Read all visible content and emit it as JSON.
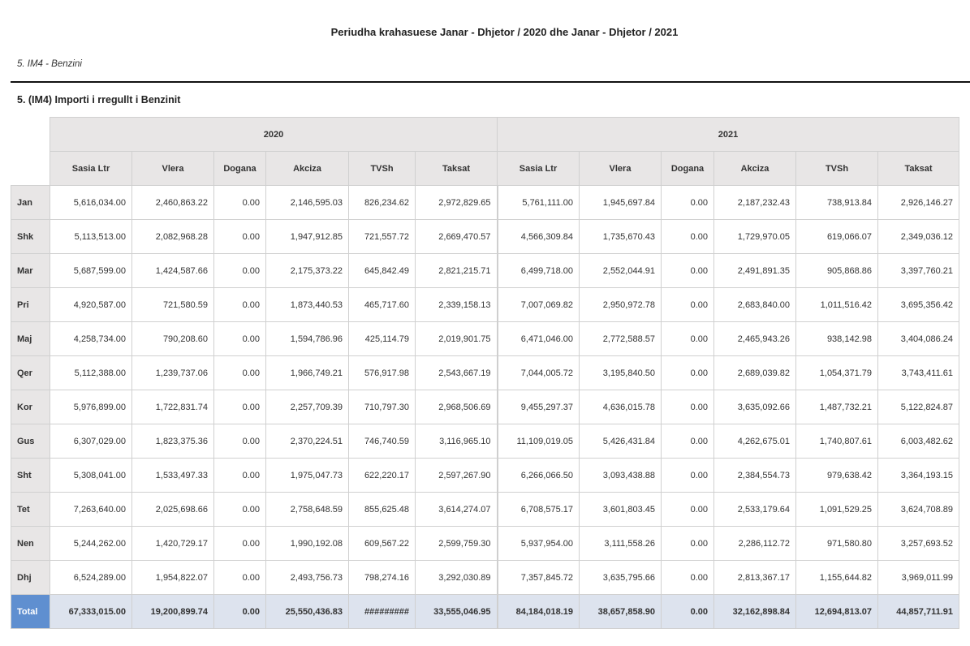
{
  "title": "Periudha krahasuese  Janar - Dhjetor / 2020 dhe Janar - Dhjetor / 2021",
  "subtitle": "5. IM4 - Benzini",
  "section_title": "5. (IM4) Importi i rregullt i Benzinit",
  "years": [
    "2020",
    "2021"
  ],
  "columns": [
    "Sasia Ltr",
    "Vlera",
    "Dogana",
    "Akciza",
    "TVSh",
    "Taksat"
  ],
  "rows": [
    {
      "month": "Jan",
      "y2020": [
        "5,616,034.00",
        "2,460,863.22",
        "0.00",
        "2,146,595.03",
        "826,234.62",
        "2,972,829.65"
      ],
      "y2021": [
        "5,761,111.00",
        "1,945,697.84",
        "0.00",
        "2,187,232.43",
        "738,913.84",
        "2,926,146.27"
      ]
    },
    {
      "month": "Shk",
      "y2020": [
        "5,113,513.00",
        "2,082,968.28",
        "0.00",
        "1,947,912.85",
        "721,557.72",
        "2,669,470.57"
      ],
      "y2021": [
        "4,566,309.84",
        "1,735,670.43",
        "0.00",
        "1,729,970.05",
        "619,066.07",
        "2,349,036.12"
      ]
    },
    {
      "month": "Mar",
      "y2020": [
        "5,687,599.00",
        "1,424,587.66",
        "0.00",
        "2,175,373.22",
        "645,842.49",
        "2,821,215.71"
      ],
      "y2021": [
        "6,499,718.00",
        "2,552,044.91",
        "0.00",
        "2,491,891.35",
        "905,868.86",
        "3,397,760.21"
      ]
    },
    {
      "month": "Pri",
      "y2020": [
        "4,920,587.00",
        "721,580.59",
        "0.00",
        "1,873,440.53",
        "465,717.60",
        "2,339,158.13"
      ],
      "y2021": [
        "7,007,069.82",
        "2,950,972.78",
        "0.00",
        "2,683,840.00",
        "1,011,516.42",
        "3,695,356.42"
      ]
    },
    {
      "month": "Maj",
      "y2020": [
        "4,258,734.00",
        "790,208.60",
        "0.00",
        "1,594,786.96",
        "425,114.79",
        "2,019,901.75"
      ],
      "y2021": [
        "6,471,046.00",
        "2,772,588.57",
        "0.00",
        "2,465,943.26",
        "938,142.98",
        "3,404,086.24"
      ]
    },
    {
      "month": "Qer",
      "y2020": [
        "5,112,388.00",
        "1,239,737.06",
        "0.00",
        "1,966,749.21",
        "576,917.98",
        "2,543,667.19"
      ],
      "y2021": [
        "7,044,005.72",
        "3,195,840.50",
        "0.00",
        "2,689,039.82",
        "1,054,371.79",
        "3,743,411.61"
      ]
    },
    {
      "month": "Kor",
      "y2020": [
        "5,976,899.00",
        "1,722,831.74",
        "0.00",
        "2,257,709.39",
        "710,797.30",
        "2,968,506.69"
      ],
      "y2021": [
        "9,455,297.37",
        "4,636,015.78",
        "0.00",
        "3,635,092.66",
        "1,487,732.21",
        "5,122,824.87"
      ]
    },
    {
      "month": "Gus",
      "y2020": [
        "6,307,029.00",
        "1,823,375.36",
        "0.00",
        "2,370,224.51",
        "746,740.59",
        "3,116,965.10"
      ],
      "y2021": [
        "11,109,019.05",
        "5,426,431.84",
        "0.00",
        "4,262,675.01",
        "1,740,807.61",
        "6,003,482.62"
      ]
    },
    {
      "month": "Sht",
      "y2020": [
        "5,308,041.00",
        "1,533,497.33",
        "0.00",
        "1,975,047.73",
        "622,220.17",
        "2,597,267.90"
      ],
      "y2021": [
        "6,266,066.50",
        "3,093,438.88",
        "0.00",
        "2,384,554.73",
        "979,638.42",
        "3,364,193.15"
      ]
    },
    {
      "month": "Tet",
      "y2020": [
        "7,263,640.00",
        "2,025,698.66",
        "0.00",
        "2,758,648.59",
        "855,625.48",
        "3,614,274.07"
      ],
      "y2021": [
        "6,708,575.17",
        "3,601,803.45",
        "0.00",
        "2,533,179.64",
        "1,091,529.25",
        "3,624,708.89"
      ]
    },
    {
      "month": "Nen",
      "y2020": [
        "5,244,262.00",
        "1,420,729.17",
        "0.00",
        "1,990,192.08",
        "609,567.22",
        "2,599,759.30"
      ],
      "y2021": [
        "5,937,954.00",
        "3,111,558.26",
        "0.00",
        "2,286,112.72",
        "971,580.80",
        "3,257,693.52"
      ]
    },
    {
      "month": "Dhj",
      "y2020": [
        "6,524,289.00",
        "1,954,822.07",
        "0.00",
        "2,493,756.73",
        "798,274.16",
        "3,292,030.89"
      ],
      "y2021": [
        "7,357,845.72",
        "3,635,795.66",
        "0.00",
        "2,813,367.17",
        "1,155,644.82",
        "3,969,011.99"
      ]
    }
  ],
  "total": {
    "label": "Total",
    "y2020": [
      "67,333,015.00",
      "19,200,899.74",
      "0.00",
      "25,550,436.83",
      "#########",
      "33,555,046.95"
    ],
    "y2021": [
      "84,184,018.19",
      "38,657,858.90",
      "0.00",
      "32,162,898.84",
      "12,694,813.07",
      "44,857,711.91"
    ]
  }
}
